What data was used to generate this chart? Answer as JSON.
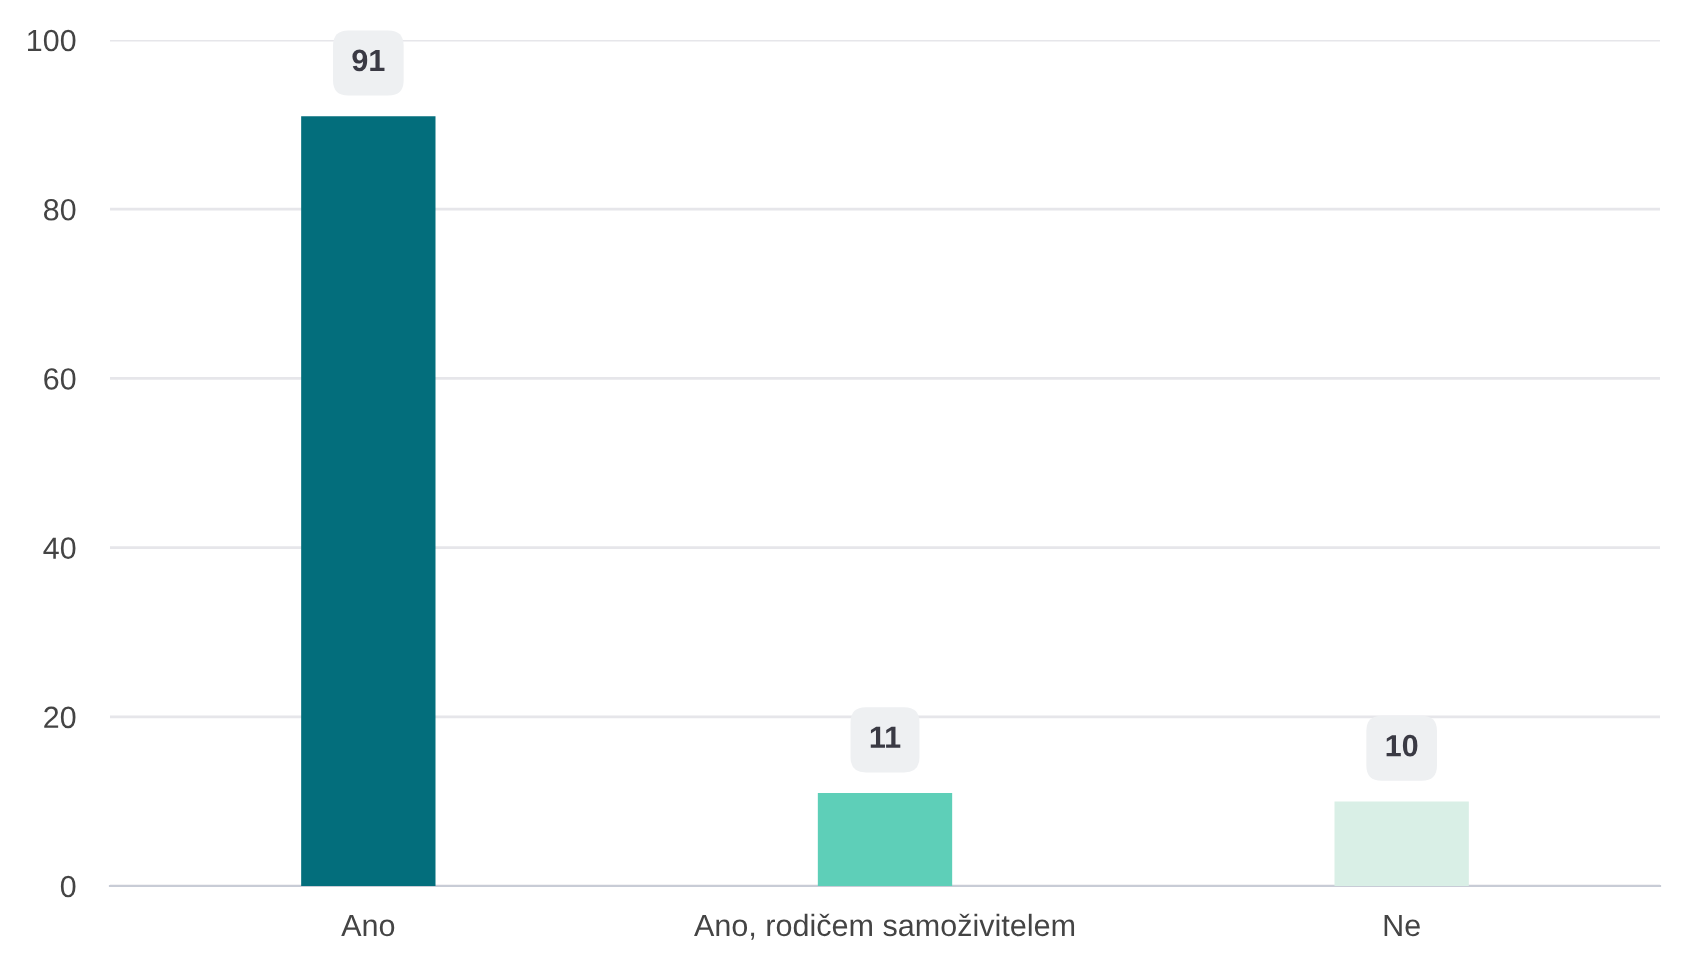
{
  "chart_data": {
    "type": "bar",
    "categories": [
      "Ano",
      "Ano, rodičem samoživitelem",
      "Ne"
    ],
    "values": [
      91,
      11,
      10
    ],
    "colors": [
      "#036e7c",
      "#5ecfb8",
      "#d9efe6"
    ],
    "ylim": [
      0,
      100
    ],
    "yticks": [
      0,
      20,
      40,
      60,
      80,
      100
    ],
    "grid": "y",
    "data_labels": true
  }
}
